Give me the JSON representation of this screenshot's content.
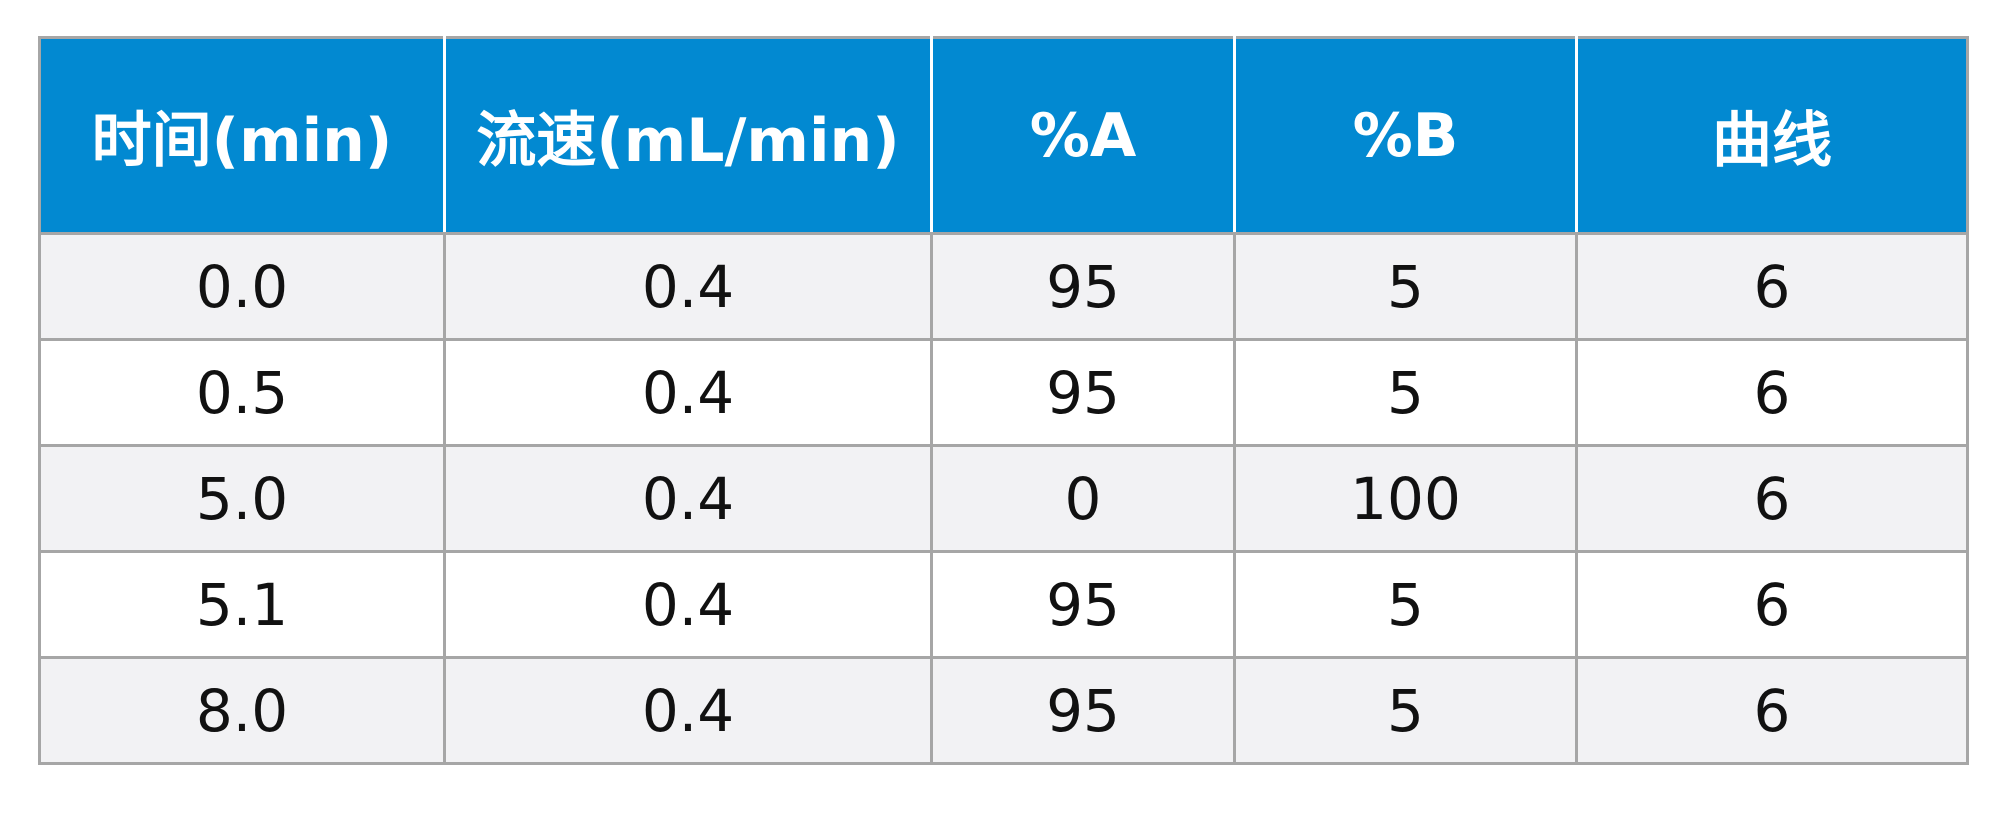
{
  "table": {
    "headers": [
      "时间(min)",
      "流速(mL/min)",
      "%A",
      "%B",
      "曲线"
    ],
    "rows": [
      [
        "0.0",
        "0.4",
        "95",
        "5",
        "6"
      ],
      [
        "0.5",
        "0.4",
        "95",
        "5",
        "6"
      ],
      [
        "5.0",
        "0.4",
        "0",
        "100",
        "6"
      ],
      [
        "5.1",
        "0.4",
        "95",
        "5",
        "6"
      ],
      [
        "8.0",
        "0.4",
        "95",
        "5",
        "6"
      ]
    ]
  },
  "colors": {
    "header_bg": "#0289d1",
    "header_text": "#ffffff",
    "row_alt_bg": "#f2f2f4",
    "grid": "#a6a6a6"
  }
}
